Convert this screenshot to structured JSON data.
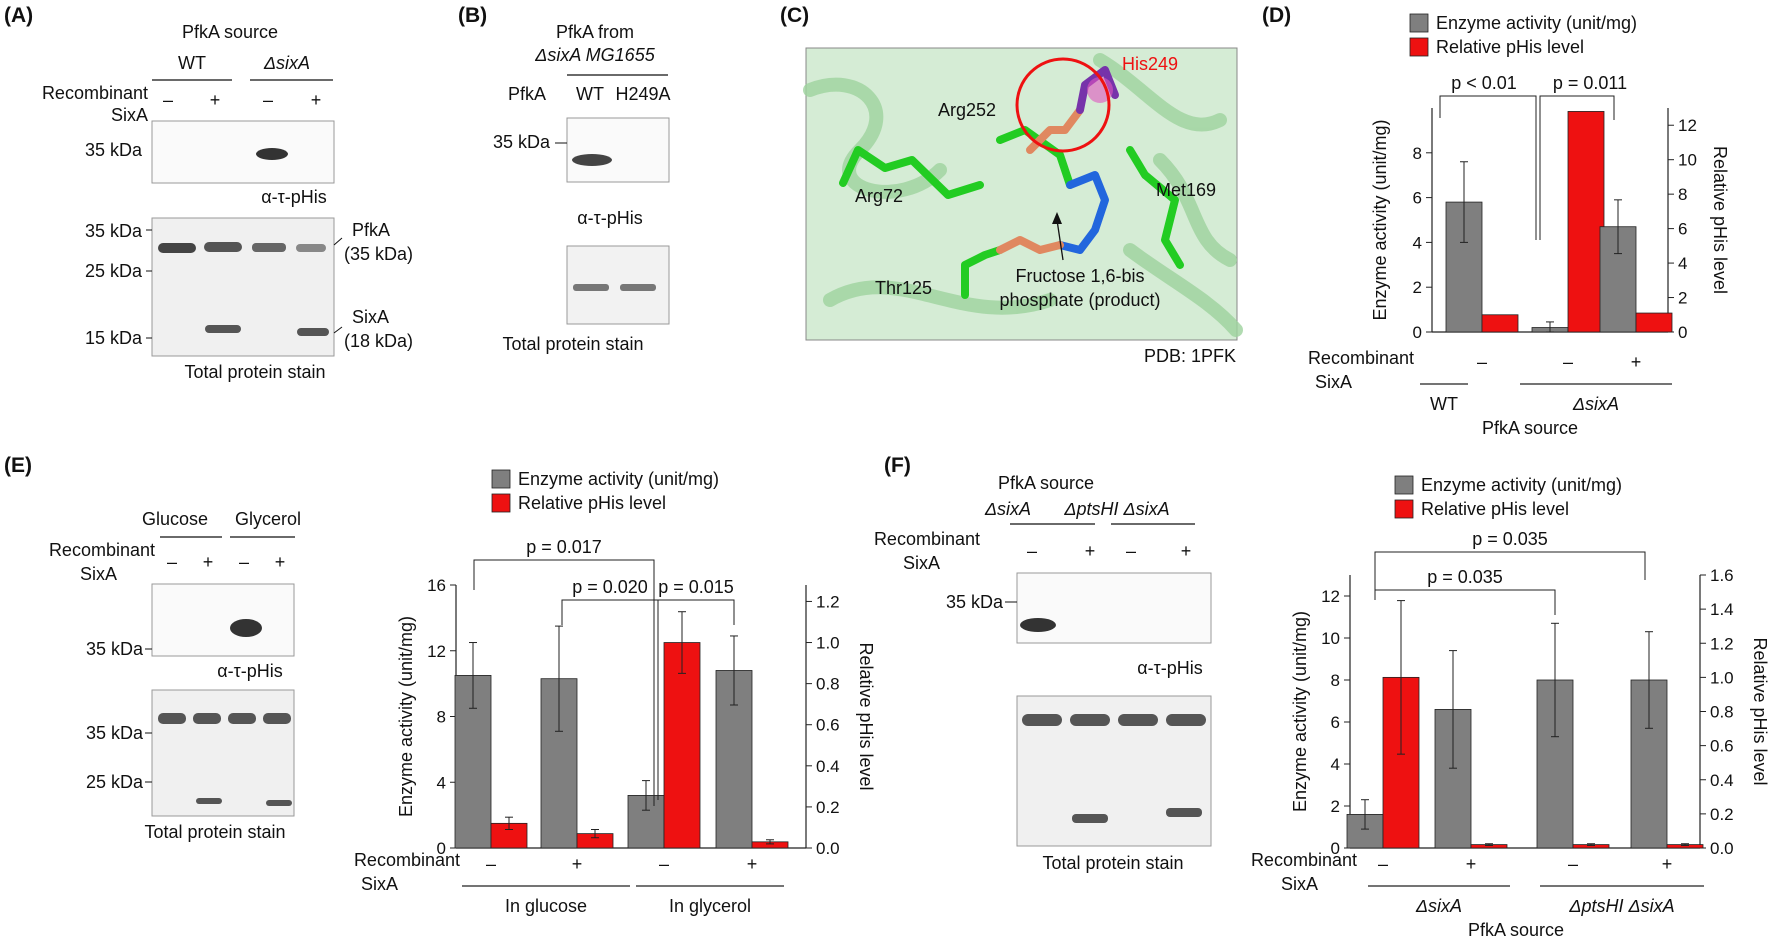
{
  "panels": {
    "A": {
      "label": "(A)",
      "pfka_source": "PfkA source",
      "wt": "WT",
      "delta_sixA": "ΔsixA",
      "recombinant": "Recombinant",
      "sixa": "SixA",
      "signs": [
        "–",
        "+",
        "–",
        "+"
      ],
      "mw_top": "35 kDa",
      "antibody": "α-τ-pHis",
      "mw_bottom": [
        "35 kDa",
        "25 kDa",
        "15 kDa"
      ],
      "pfka_annot": [
        "PfkA",
        "(35 kDa)"
      ],
      "sixa_annot": [
        "SixA",
        "(18 kDa)"
      ],
      "stain": "Total protein stain"
    },
    "B": {
      "label": "(B)",
      "title": [
        "PfkA from",
        "ΔsixA MG1655"
      ],
      "pfka": "PfkA",
      "lanes": [
        "WT",
        "H249A"
      ],
      "mw": "35 kDa",
      "antibody": "α-τ-pHis",
      "stain": "Total protein stain"
    },
    "C": {
      "label": "(C)",
      "residues": [
        "His249",
        "Arg252",
        "Arg72",
        "Met169",
        "Thr125"
      ],
      "ligand": [
        "Fructose 1,6-bis",
        "phosphate (product)"
      ],
      "pdb": "PDB: 1PFK"
    },
    "E": {
      "label": "(E)",
      "conditions": [
        "Glucose",
        "Glycerol"
      ],
      "recombinant": "Recombinant",
      "sixa": "SixA",
      "signs": [
        "–",
        "+",
        "–",
        "+"
      ],
      "mw_top": "35 kDa",
      "antibody": "α-τ-pHis",
      "mw_bottom": [
        "35 kDa",
        "25 kDa"
      ],
      "stain": "Total protein stain"
    },
    "F": {
      "label": "(F)",
      "pfka_source": "PfkA source",
      "strains": [
        "ΔsixA",
        "ΔptsHI ΔsixA"
      ],
      "recombinant": "Recombinant",
      "sixa": "SixA",
      "signs": [
        "–",
        "+",
        "–",
        "+"
      ],
      "mw": "35 kDa",
      "antibody": "α-τ-pHis",
      "stain": "Total protein stain"
    }
  },
  "chart_data": [
    {
      "panel": "D",
      "label": "(D)",
      "type": "bar",
      "legend": [
        "Enzyme activity (unit/mg)",
        "Relative pHis level"
      ],
      "colors": {
        "activity": "#7f7f7f",
        "phis": "#ee1111"
      },
      "ylabel_left": "Enzyme activity (unit/mg)",
      "ylabel_right": "Relative pHis level",
      "ylim_left": [
        0,
        10
      ],
      "yticks_left": [
        0,
        2,
        4,
        6,
        8
      ],
      "ylim_right": [
        0,
        13
      ],
      "yticks_right": [
        0,
        2,
        4,
        6,
        8,
        10,
        12
      ],
      "series": [
        {
          "name": "Enzyme activity (unit/mg)",
          "axis": "left",
          "values": [
            5.8,
            0.2,
            4.7
          ],
          "errors": [
            1.8,
            0.25,
            1.2
          ]
        },
        {
          "name": "Relative pHis level",
          "axis": "right",
          "values": [
            1.0,
            12.8,
            1.1
          ],
          "errors": [
            0,
            0,
            0
          ]
        }
      ],
      "row_label": [
        "Recombinant",
        "SixA"
      ],
      "signs": [
        "–",
        "–",
        "+"
      ],
      "groups": [
        {
          "text": "WT",
          "italic": false
        },
        {
          "text": "ΔsixA",
          "italic": true
        }
      ],
      "xlabel": "PfkA source",
      "pvalues": [
        "p < 0.01",
        "p = 0.011"
      ]
    },
    {
      "panel": "E",
      "type": "bar",
      "legend": [
        "Enzyme activity (unit/mg)",
        "Relative pHis level"
      ],
      "colors": {
        "activity": "#7f7f7f",
        "phis": "#ee1111"
      },
      "ylabel_left": "Enzyme activity (unit/mg)",
      "ylabel_right": "Relative pHis level",
      "ylim_left": [
        0,
        16
      ],
      "yticks_left": [
        0,
        4,
        8,
        12,
        16
      ],
      "ylim_right": [
        0,
        1.28
      ],
      "yticks_right": [
        "0.0",
        "0.2",
        "0.4",
        "0.6",
        "0.8",
        "1.0",
        "1.2"
      ],
      "series": [
        {
          "name": "Enzyme activity (unit/mg)",
          "axis": "left",
          "values": [
            10.5,
            10.3,
            3.2,
            10.8
          ],
          "errors": [
            2.0,
            3.2,
            0.9,
            2.1
          ]
        },
        {
          "name": "Relative pHis level",
          "axis": "right",
          "values": [
            0.12,
            0.07,
            1.0,
            0.03
          ],
          "errors": [
            0.03,
            0.02,
            0.15,
            0.01
          ]
        }
      ],
      "row_label": [
        "Recombinant",
        "SixA"
      ],
      "signs": [
        "–",
        "+",
        "–",
        "+"
      ],
      "groups": [
        {
          "text": "In glucose",
          "italic": false
        },
        {
          "text": "In glycerol",
          "italic": false
        }
      ],
      "pvalues": [
        "p = 0.017",
        "p = 0.020",
        "p = 0.015"
      ]
    },
    {
      "panel": "F",
      "type": "bar",
      "legend": [
        "Enzyme activity (unit/mg)",
        "Relative pHis level"
      ],
      "colors": {
        "activity": "#7f7f7f",
        "phis": "#ee1111"
      },
      "ylabel_left": "Enzyme activity (unit/mg)",
      "ylabel_right": "Relative pHis level",
      "ylim_left": [
        0,
        13
      ],
      "yticks_left": [
        0,
        2,
        4,
        6,
        8,
        10,
        12
      ],
      "ylim_right": [
        0,
        1.6
      ],
      "yticks_right": [
        "0.0",
        "0.2",
        "0.4",
        "0.6",
        "0.8",
        "1.0",
        "1.2",
        "1.4",
        "1.6"
      ],
      "series": [
        {
          "name": "Enzyme activity (unit/mg)",
          "axis": "left",
          "values": [
            1.6,
            6.6,
            8.0,
            8.0
          ],
          "errors": [
            0.7,
            2.8,
            2.7,
            2.3
          ]
        },
        {
          "name": "Relative pHis level",
          "axis": "right",
          "values": [
            1.0,
            0.02,
            0.02,
            0.02
          ],
          "errors": [
            0.45,
            0.005,
            0.005,
            0.005
          ]
        }
      ],
      "row_label": [
        "Recombinant",
        "SixA"
      ],
      "signs": [
        "–",
        "+",
        "–",
        "+"
      ],
      "groups": [
        {
          "text": "ΔsixA",
          "italic": true
        },
        {
          "text": "ΔptsHI ΔsixA",
          "italic": true
        }
      ],
      "xlabel": "PfkA source",
      "pvalues": [
        "p = 0.035",
        "p = 0.035"
      ]
    }
  ]
}
